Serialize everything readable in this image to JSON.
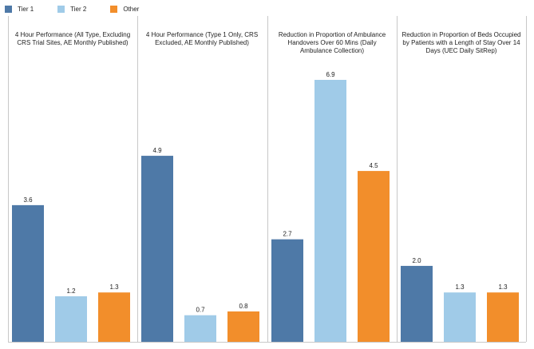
{
  "legend": [
    {
      "name": "Tier 1",
      "color": "#4e79a7"
    },
    {
      "name": "Tier 2",
      "color": "#a0cbe8"
    },
    {
      "name": "Other",
      "color": "#f28e2b"
    }
  ],
  "chart_data": {
    "type": "bar",
    "grid": false,
    "legend_position": "top-left",
    "ylim": [
      0,
      7.5
    ],
    "panels": [
      {
        "title_lines": [
          "4 Hour Performance (All Type, Excluding",
          "CRS Trial Sites, AE Monthly Published)"
        ],
        "series": [
          {
            "name": "Tier 1",
            "value": 3.6,
            "label": "3.6"
          },
          {
            "name": "Tier 2",
            "value": 1.2,
            "label": "1.2"
          },
          {
            "name": "Other",
            "value": 1.3,
            "label": "1.3"
          }
        ]
      },
      {
        "title_lines": [
          "4 Hour Performance (Type 1 Only, CRS",
          "Excluded, AE Monthly Published)"
        ],
        "series": [
          {
            "name": "Tier 1",
            "value": 4.9,
            "label": "4.9"
          },
          {
            "name": "Tier 2",
            "value": 0.7,
            "label": "0.7"
          },
          {
            "name": "Other",
            "value": 0.8,
            "label": "0.8"
          }
        ]
      },
      {
        "title_lines": [
          "Reduction in Proportion of Ambulance",
          "Handovers Over 60 Mins (Daily",
          "Ambulance Collection)"
        ],
        "series": [
          {
            "name": "Tier 1",
            "value": 2.7,
            "label": "2.7"
          },
          {
            "name": "Tier 2",
            "value": 6.9,
            "label": "6.9"
          },
          {
            "name": "Other",
            "value": 4.5,
            "label": "4.5"
          }
        ]
      },
      {
        "title_lines": [
          "Reduction in Proportion of Beds Occupied",
          "by Patients with a Length of Stay Over 14",
          "Days (UEC Daily SitRep)"
        ],
        "series": [
          {
            "name": "Tier 1",
            "value": 2.0,
            "label": "2.0"
          },
          {
            "name": "Tier 2",
            "value": 1.3,
            "label": "1.3"
          },
          {
            "name": "Other",
            "value": 1.3,
            "label": "1.3"
          }
        ]
      }
    ]
  }
}
